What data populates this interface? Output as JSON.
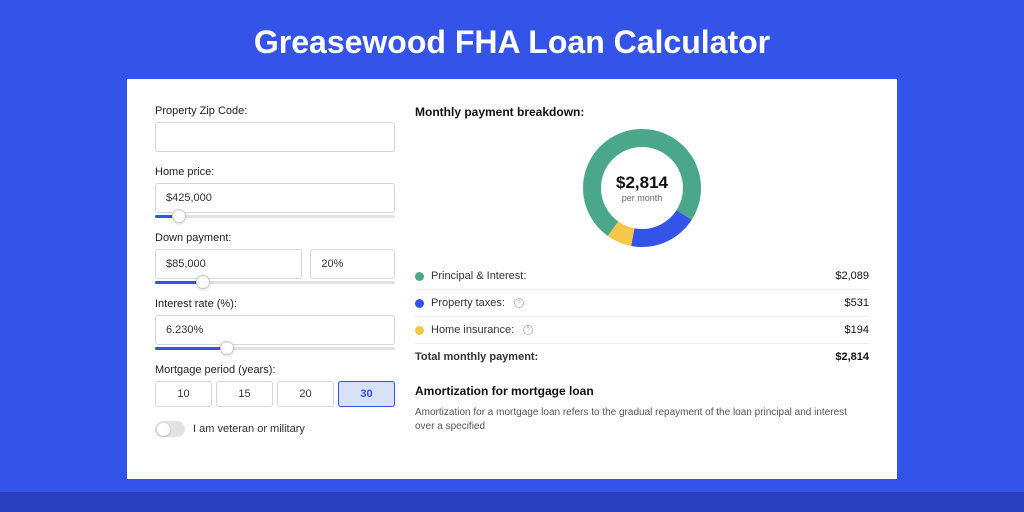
{
  "page_title": "Greasewood FHA Loan Calculator",
  "theme": {
    "page_bg": "#3453e8",
    "accent_bg": "#2a3fbf",
    "panel_bg": "#ffffff",
    "title_color": "#ffffff",
    "border_color": "#d5d5d5",
    "slider_track": "#e2e2e2",
    "slider_fill": "#3453e8"
  },
  "form": {
    "zip": {
      "label": "Property Zip Code:",
      "value": ""
    },
    "home_price": {
      "label": "Home price:",
      "value": "$425,000",
      "slider_percent": 10
    },
    "down_payment": {
      "label": "Down payment:",
      "value": "$85,000",
      "percent_value": "20%",
      "slider_percent": 20
    },
    "interest_rate": {
      "label": "Interest rate (%):",
      "value": "6.230%",
      "slider_percent": 30
    },
    "period": {
      "label": "Mortgage period (years):",
      "options": [
        "10",
        "15",
        "20",
        "30"
      ],
      "selected": "30"
    },
    "veteran": {
      "label": "I am veteran or military",
      "checked": false
    }
  },
  "breakdown": {
    "title": "Monthly payment breakdown:",
    "donut": {
      "amount": "$2,814",
      "sub": "per month",
      "segments": [
        {
          "label": "Principal & Interest",
          "value": 2089,
          "display": "$2,089",
          "color": "#4ba78a",
          "has_info": false
        },
        {
          "label": "Property taxes",
          "value": 531,
          "display": "$531",
          "color": "#3453e8",
          "has_info": true
        },
        {
          "label": "Home insurance",
          "value": 194,
          "display": "$194",
          "color": "#f5c84c",
          "has_info": true
        }
      ],
      "stroke_width": 18,
      "radius": 50
    },
    "legend": {
      "pi": {
        "label": "Principal & Interest:",
        "value": "$2,089",
        "color": "#4ba78a"
      },
      "tax": {
        "label": "Property taxes:",
        "value": "$531",
        "color": "#3453e8"
      },
      "ins": {
        "label": "Home insurance:",
        "value": "$194",
        "color": "#f5c84c"
      },
      "total": {
        "label": "Total monthly payment:",
        "value": "$2,814"
      }
    }
  },
  "amortization": {
    "title": "Amortization for mortgage loan",
    "text": "Amortization for a mortgage loan refers to the gradual repayment of the loan principal and interest over a specified"
  }
}
